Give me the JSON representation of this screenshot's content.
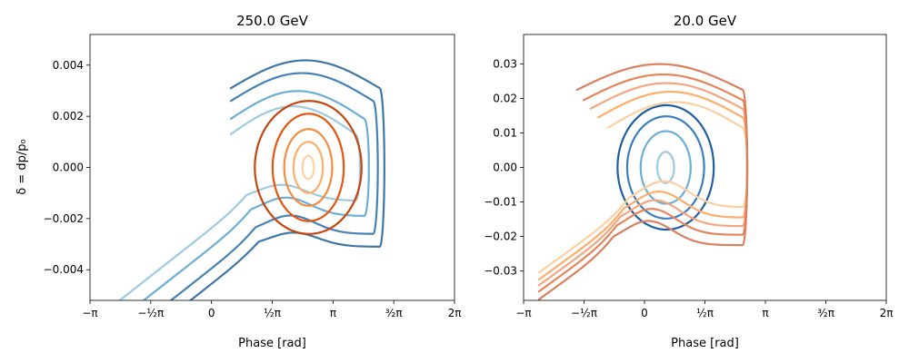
{
  "chart_data": [
    {
      "type": "scatter",
      "title": "250.0 GeV",
      "xlabel": "Phase [rad]",
      "ylabel": "δ = dp/p₀",
      "xlim": [
        -3.1416,
        6.2832
      ],
      "ylim": [
        -0.0052,
        0.0052
      ],
      "x_ticks": [
        {
          "value": -3.1416,
          "label": "−π"
        },
        {
          "value": -1.5708,
          "label": "−½π"
        },
        {
          "value": 0,
          "label": "0"
        },
        {
          "value": 1.5708,
          "label": "½π"
        },
        {
          "value": 3.1416,
          "label": "π"
        },
        {
          "value": 4.7124,
          "label": "³⁄₂π"
        },
        {
          "value": 6.2832,
          "label": "2π"
        }
      ],
      "y_ticks": [
        {
          "value": 0.004,
          "label": "0.004"
        },
        {
          "value": 0.002,
          "label": "0.002"
        },
        {
          "value": 0.0,
          "label": "0.000"
        },
        {
          "value": -0.002,
          "label": "−0.002"
        },
        {
          "value": -0.004,
          "label": "−0.004"
        }
      ],
      "series": [
        {
          "kind": "open",
          "color": "#9ecae1",
          "vc": 0.0013,
          "amp": 0.00198,
          "phase_min": 0.5,
          "phase_max": 3.72,
          "tail_peak": -0.00068
        },
        {
          "kind": "open",
          "color": "#6baed6",
          "vc": 0.0019,
          "amp": 0.00198,
          "phase_min": 0.5,
          "phase_max": 3.95,
          "tail_peak": -0.00118
        },
        {
          "kind": "open",
          "color": "#4682b4",
          "vc": 0.0026,
          "amp": 0.00198,
          "phase_min": 0.5,
          "phase_max": 4.18,
          "tail_peak": -0.00188
        },
        {
          "kind": "open",
          "color": "#3f76a8",
          "vc": 0.0031,
          "amp": 0.00198,
          "phase_min": 0.5,
          "phase_max": 4.35,
          "tail_peak": -0.00255
        },
        {
          "kind": "closed",
          "color": "#fdd0a2",
          "center_x": 2.5,
          "center_y": 0,
          "half_width": 0.15,
          "half_height": 0.00045
        },
        {
          "kind": "closed",
          "color": "#fdae6b",
          "center_x": 2.5,
          "center_y": 0,
          "half_width": 0.38,
          "half_height": 0.001
        },
        {
          "kind": "closed",
          "color": "#f58d3f",
          "center_x": 2.5,
          "center_y": 0,
          "half_width": 0.62,
          "half_height": 0.0015
        },
        {
          "kind": "closed",
          "color": "#e6550d",
          "center_x": 2.5,
          "center_y": 0,
          "half_width": 0.92,
          "half_height": 0.0021
        },
        {
          "kind": "closed",
          "color": "#c4460e",
          "center_x": 2.5,
          "center_y": 0,
          "half_width": 1.38,
          "half_height": 0.0026
        }
      ]
    },
    {
      "type": "scatter",
      "title": "20.0 GeV",
      "xlabel": "Phase [rad]",
      "ylabel": "",
      "xlim": [
        -3.1416,
        6.2832
      ],
      "ylim": [
        -0.0385,
        0.0385
      ],
      "x_ticks": [
        {
          "value": -3.1416,
          "label": "−π"
        },
        {
          "value": -1.5708,
          "label": "−½π"
        },
        {
          "value": 0,
          "label": "0"
        },
        {
          "value": 1.5708,
          "label": "½π"
        },
        {
          "value": 3.1416,
          "label": "π"
        },
        {
          "value": 4.7124,
          "label": "³⁄₂π"
        },
        {
          "value": 6.2832,
          "label": "2π"
        }
      ],
      "y_ticks": [
        {
          "value": 0.03,
          "label": "0.03"
        },
        {
          "value": 0.02,
          "label": "0.02"
        },
        {
          "value": 0.01,
          "label": "0.01"
        },
        {
          "value": 0.0,
          "label": "0.00"
        },
        {
          "value": -0.01,
          "label": "−0.01"
        },
        {
          "value": -0.02,
          "label": "−0.02"
        },
        {
          "value": -0.03,
          "label": "−0.03"
        }
      ],
      "series": [
        {
          "kind": "closed",
          "color": "#9ecae1",
          "center_x": 0.55,
          "center_y": 0,
          "half_width": 0.22,
          "half_height": 0.0045
        },
        {
          "kind": "closed",
          "color": "#6baed6",
          "center_x": 0.55,
          "center_y": 0,
          "half_width": 0.65,
          "half_height": 0.0105
        },
        {
          "kind": "closed",
          "color": "#3a7ebf",
          "center_x": 0.55,
          "center_y": 0,
          "half_width": 1.0,
          "half_height": 0.0148
        },
        {
          "kind": "closed",
          "color": "#1f5fa0",
          "center_x": 0.55,
          "center_y": 0,
          "half_width": 1.25,
          "half_height": 0.018
        },
        {
          "kind": "open",
          "color": "#fdd0a2",
          "vc": 0.0115,
          "amp": 0.0135,
          "phase_min": -0.95,
          "phase_max": 2.55,
          "tail_peak": -0.004
        },
        {
          "kind": "open",
          "color": "#fdae6b",
          "vc": 0.0145,
          "amp": 0.0135,
          "phase_min": -1.2,
          "phase_max": 2.55,
          "tail_peak": -0.007
        },
        {
          "kind": "open",
          "color": "#f4a582",
          "vc": 0.017,
          "amp": 0.0135,
          "phase_min": -1.4,
          "phase_max": 2.55,
          "tail_peak": -0.0095
        },
        {
          "kind": "open",
          "color": "#e6855a",
          "vc": 0.0195,
          "amp": 0.0135,
          "phase_min": -1.58,
          "phase_max": 2.55,
          "tail_peak": -0.012
        },
        {
          "kind": "open",
          "color": "#d9805f",
          "vc": 0.0225,
          "amp": 0.0135,
          "phase_min": -1.75,
          "phase_max": 2.55,
          "tail_peak": -0.0155
        }
      ]
    }
  ]
}
